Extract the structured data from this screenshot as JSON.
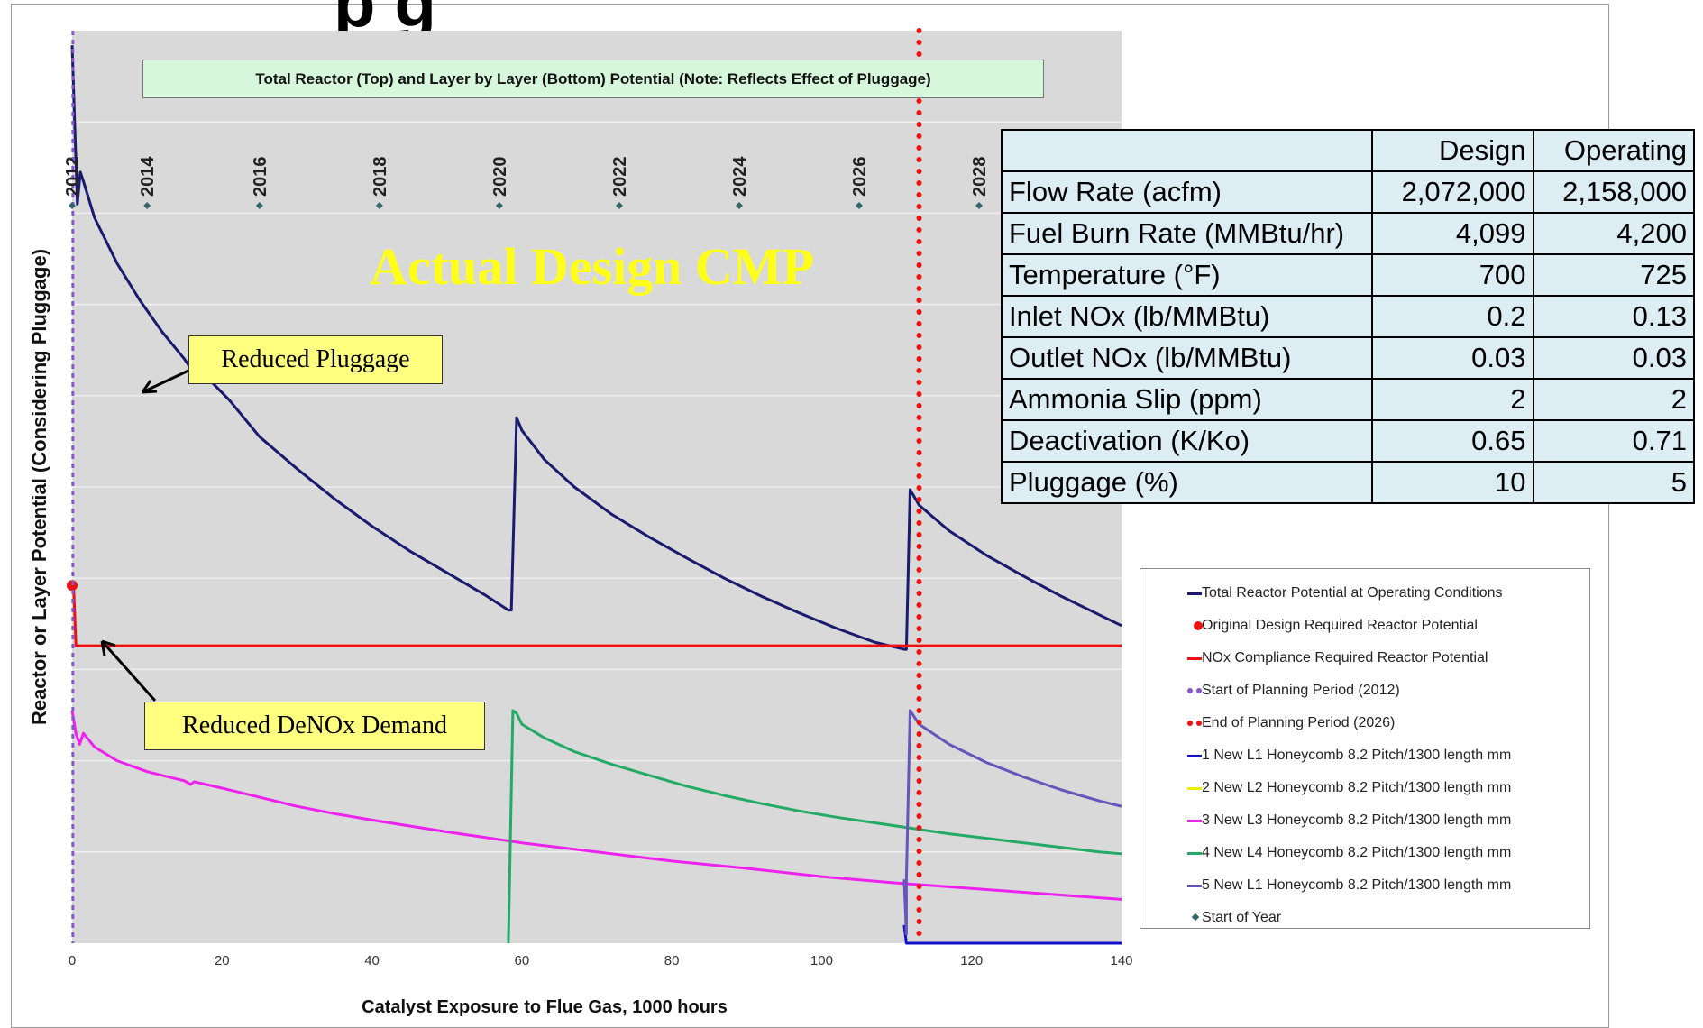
{
  "banner_title": "Total Reactor (Top) and Layer by Layer (Bottom) Potential (Note: Reflects Effect of Pluggage)",
  "top_strip_text": "p                                              g",
  "watermark": "Actual Design CMP",
  "callouts": {
    "reduced_pluggage": "Reduced Pluggage",
    "reduced_denox": "Reduced DeNOx Demand"
  },
  "table": {
    "headers": [
      "",
      "Design",
      "Operating"
    ],
    "rows": [
      [
        "Flow Rate (acfm)",
        "2,072,000",
        "2,158,000"
      ],
      [
        "Fuel Burn Rate (MMBtu/hr)",
        "4,099",
        "4,200"
      ],
      [
        "Temperature (°F)",
        "700",
        "725"
      ],
      [
        "Inlet NOx (lb/MMBtu)",
        "0.2",
        "0.13"
      ],
      [
        "Outlet NOx (lb/MMBtu)",
        "0.03",
        "0.03"
      ],
      [
        "Ammonia Slip (ppm)",
        "2",
        "2"
      ],
      [
        "Deactivation (K/Ko)",
        "0.65",
        "0.71"
      ],
      [
        "Pluggage (%)",
        "10",
        "5"
      ]
    ]
  },
  "legend": [
    {
      "label": "Total Reactor Potential at Operating Conditions",
      "marker": "line",
      "color": "#1a1a6e"
    },
    {
      "label": "Original Design Required Reactor Potential",
      "marker": "dot",
      "color": "#ee1111"
    },
    {
      "label": "NOx Compliance Required Reactor Potential",
      "marker": "line",
      "color": "#ee1111"
    },
    {
      "label": "Start of Planning Period (2012)",
      "marker": "dots",
      "color": "#8855cc"
    },
    {
      "label": "End of Planning Period (2026)",
      "marker": "dots",
      "color": "#ee1111"
    },
    {
      "label": "1 New L1 Honeycomb 8.2 Pitch/1300 length mm",
      "marker": "line",
      "color": "#1111cc"
    },
    {
      "label": "2 New L2 Honeycomb 8.2 Pitch/1300 length mm",
      "marker": "line",
      "color": "#f0f000"
    },
    {
      "label": "3 New L3 Honeycomb 8.2 Pitch/1300 length mm",
      "marker": "line",
      "color": "#ee22ee"
    },
    {
      "label": "4 New L4 Honeycomb 8.2 Pitch/1300 length mm",
      "marker": "line",
      "color": "#22aa66"
    },
    {
      "label": "5 New L1 Honeycomb 8.2 Pitch/1300 length mm",
      "marker": "line",
      "color": "#6655bb"
    },
    {
      "label": "Start of Year",
      "marker": "diamond",
      "color": "#336666"
    }
  ],
  "chart_data": {
    "type": "line",
    "title": "Total Reactor (Top) and Layer by Layer (Bottom) Potential (Note: Reflects Effect of Pluggage)",
    "xlabel": "Catalyst Exposure to Flue Gas, 1000 hours",
    "ylabel": "Reactor or Layer Potential (Considering Pluggage)",
    "xlim": [
      0,
      140
    ],
    "ylim": [
      0,
      10
    ],
    "x_ticks": [
      0,
      20,
      40,
      60,
      80,
      100,
      120,
      140
    ],
    "grid": true,
    "year_markers": [
      {
        "x": 0,
        "label": "2012"
      },
      {
        "x": 10,
        "label": "2014"
      },
      {
        "x": 25,
        "label": "2016"
      },
      {
        "x": 41,
        "label": "2018"
      },
      {
        "x": 57,
        "label": "2020"
      },
      {
        "x": 73,
        "label": "2022"
      },
      {
        "x": 89,
        "label": "2024"
      },
      {
        "x": 105,
        "label": "2026"
      },
      {
        "x": 121,
        "label": "2028"
      }
    ],
    "vertical_lines": [
      {
        "name": "Start of Planning Period (2012)",
        "x": 0.1,
        "color": "#8855cc"
      },
      {
        "name": "End of Planning Period (2026)",
        "x": 113,
        "color": "#ee1111"
      }
    ],
    "series": [
      {
        "name": "Total Reactor Potential at Operating Conditions",
        "color": "#1a1a6e",
        "points": [
          [
            0,
            9.84
          ],
          [
            0.4,
            8.84
          ],
          [
            0.7,
            8.1
          ],
          [
            1.1,
            8.45
          ],
          [
            1.5,
            8.35
          ],
          [
            3,
            7.95
          ],
          [
            6,
            7.45
          ],
          [
            9,
            7.05
          ],
          [
            12,
            6.7
          ],
          [
            15,
            6.4
          ],
          [
            15.8,
            6.3
          ],
          [
            16.3,
            6.38
          ],
          [
            18,
            6.2
          ],
          [
            21,
            5.95
          ],
          [
            25,
            5.55
          ],
          [
            30,
            5.2
          ],
          [
            35,
            4.87
          ],
          [
            40,
            4.57
          ],
          [
            45,
            4.3
          ],
          [
            50,
            4.06
          ],
          [
            55,
            3.82
          ],
          [
            58.2,
            3.65
          ],
          [
            58.6,
            3.65
          ],
          [
            59.3,
            5.76
          ],
          [
            60,
            5.62
          ],
          [
            63,
            5.3
          ],
          [
            67,
            5.0
          ],
          [
            72,
            4.7
          ],
          [
            77,
            4.45
          ],
          [
            82,
            4.22
          ],
          [
            87,
            4.0
          ],
          [
            92,
            3.8
          ],
          [
            97,
            3.62
          ],
          [
            102,
            3.45
          ],
          [
            107,
            3.3
          ],
          [
            111,
            3.22
          ],
          [
            111.3,
            3.22
          ],
          [
            111.8,
            4.97
          ],
          [
            113,
            4.8
          ],
          [
            117,
            4.52
          ],
          [
            122,
            4.25
          ],
          [
            127,
            4.02
          ],
          [
            132,
            3.8
          ],
          [
            137,
            3.6
          ],
          [
            140,
            3.48
          ]
        ]
      },
      {
        "name": "Original Design Required Reactor Potential",
        "color": "#ee1111",
        "marker": "dot",
        "points": [
          [
            0,
            3.92
          ]
        ]
      },
      {
        "name": "NOx Compliance Required Reactor Potential",
        "color": "#ee1111",
        "points": [
          [
            0,
            3.93
          ],
          [
            0.2,
            3.9
          ],
          [
            0.5,
            3.26
          ],
          [
            1,
            3.26
          ],
          [
            140,
            3.26
          ]
        ]
      },
      {
        "name": "1 New L1 Honeycomb 8.2 Pitch/1300 length mm",
        "color": "#1111cc",
        "points": [
          [
            111,
            0.2
          ],
          [
            111.3,
            0.0
          ],
          [
            140,
            0.0
          ]
        ]
      },
      {
        "name": "3 New L3 Honeycomb 8.2 Pitch/1300 length mm",
        "color": "#ee22ee",
        "points": [
          [
            0,
            2.55
          ],
          [
            0.5,
            2.3
          ],
          [
            1,
            2.18
          ],
          [
            1.5,
            2.3
          ],
          [
            3,
            2.15
          ],
          [
            6,
            2.0
          ],
          [
            10,
            1.88
          ],
          [
            15,
            1.78
          ],
          [
            15.8,
            1.74
          ],
          [
            16.3,
            1.77
          ],
          [
            20,
            1.7
          ],
          [
            25,
            1.6
          ],
          [
            30,
            1.5
          ],
          [
            35,
            1.42
          ],
          [
            40,
            1.35
          ],
          [
            50,
            1.22
          ],
          [
            60,
            1.1
          ],
          [
            70,
            1.0
          ],
          [
            80,
            0.9
          ],
          [
            90,
            0.82
          ],
          [
            100,
            0.73
          ],
          [
            110,
            0.66
          ],
          [
            120,
            0.6
          ],
          [
            130,
            0.54
          ],
          [
            140,
            0.48
          ]
        ]
      },
      {
        "name": "4 New L4 Honeycomb 8.2 Pitch/1300 length mm",
        "color": "#22aa66",
        "points": [
          [
            58.2,
            0.0
          ],
          [
            58.8,
            2.55
          ],
          [
            59.3,
            2.52
          ],
          [
            60,
            2.4
          ],
          [
            63,
            2.25
          ],
          [
            67,
            2.1
          ],
          [
            72,
            1.96
          ],
          [
            77,
            1.84
          ],
          [
            82,
            1.72
          ],
          [
            87,
            1.62
          ],
          [
            92,
            1.53
          ],
          [
            97,
            1.45
          ],
          [
            102,
            1.38
          ],
          [
            107,
            1.32
          ],
          [
            112,
            1.26
          ],
          [
            117,
            1.2
          ],
          [
            122,
            1.15
          ],
          [
            127,
            1.1
          ],
          [
            132,
            1.05
          ],
          [
            137,
            1.0
          ],
          [
            140,
            0.98
          ]
        ]
      },
      {
        "name": "5 New L1 Honeycomb 8.2 Pitch/1300 length mm",
        "color": "#6655bb",
        "points": [
          [
            111,
            0.7
          ],
          [
            111.3,
            0.1
          ],
          [
            111.3,
            0.7
          ],
          [
            111.8,
            2.55
          ],
          [
            113,
            2.4
          ],
          [
            117,
            2.18
          ],
          [
            122,
            1.98
          ],
          [
            127,
            1.82
          ],
          [
            132,
            1.68
          ],
          [
            137,
            1.56
          ],
          [
            140,
            1.5
          ]
        ]
      }
    ]
  }
}
